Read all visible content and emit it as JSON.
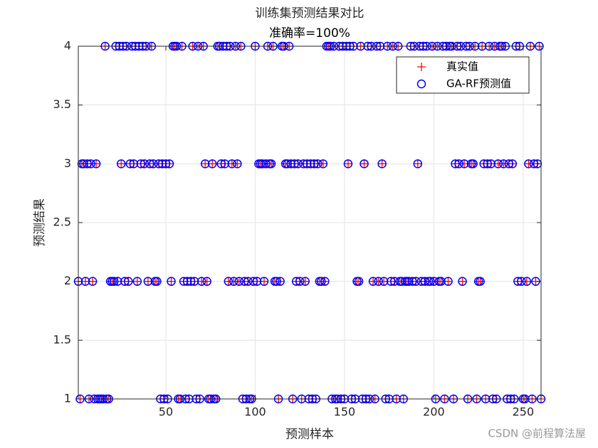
{
  "chart_data": {
    "type": "scatter",
    "title": "训练集预测结果对比",
    "subtitle": "准确率=100%",
    "x_label": "预测样本",
    "y_label": "预测结果",
    "watermark": "CSDN @前程算法屋",
    "xlim": [
      1,
      260
    ],
    "xticks": [
      50,
      100,
      150,
      200,
      250
    ],
    "ylim": [
      1,
      4
    ],
    "yticks": [
      1,
      1.5,
      2,
      2.5,
      3,
      3.5,
      4
    ],
    "grid": true,
    "legend": "upper right",
    "x": [
      1,
      2,
      3,
      4,
      5,
      6,
      7,
      8,
      9,
      10,
      11,
      12,
      13,
      14,
      15,
      16,
      17,
      18,
      19,
      20,
      21,
      22,
      23,
      24,
      25,
      26,
      27,
      28,
      29,
      30,
      31,
      32,
      33,
      34,
      35,
      36,
      37,
      38,
      39,
      40,
      41,
      42,
      43,
      44,
      45,
      46,
      47,
      48,
      49,
      50,
      51,
      52,
      53,
      54,
      55,
      56,
      57,
      58,
      59,
      60,
      61,
      62,
      63,
      64,
      65,
      66,
      67,
      68,
      69,
      70,
      71,
      72,
      73,
      74,
      75,
      76,
      77,
      78,
      79,
      80,
      81,
      82,
      83,
      84,
      85,
      86,
      87,
      88,
      89,
      90,
      91,
      92,
      93,
      94,
      95,
      96,
      97,
      98,
      99,
      100,
      101,
      102,
      103,
      104,
      105,
      106,
      107,
      108,
      109,
      110,
      111,
      112,
      113,
      114,
      115,
      116,
      117,
      118,
      119,
      120,
      121,
      122,
      123,
      124,
      125,
      126,
      127,
      128,
      129,
      130,
      131,
      132,
      133,
      134,
      135,
      136,
      137,
      138,
      139,
      140,
      141,
      142,
      143,
      144,
      145,
      146,
      147,
      148,
      149,
      150,
      151,
      152,
      153,
      154,
      155,
      156,
      157,
      158,
      159,
      160,
      161,
      162,
      163,
      164,
      165,
      166,
      167,
      168,
      169,
      170,
      171,
      172,
      173,
      174,
      175,
      176,
      177,
      178,
      179,
      180,
      181,
      182,
      183,
      184,
      185,
      186,
      187,
      188,
      189,
      190,
      191,
      192,
      193,
      194,
      195,
      196,
      197,
      198,
      199,
      200,
      201,
      202,
      203,
      204,
      205,
      206,
      207,
      208,
      209,
      210,
      211,
      212,
      213,
      214,
      215,
      216,
      217,
      218,
      219,
      220,
      221,
      222,
      223,
      224,
      225,
      226,
      227,
      228,
      229,
      230,
      231,
      232,
      233,
      234,
      235,
      236,
      237,
      238,
      239,
      240,
      241,
      242,
      243,
      244,
      245,
      246,
      247,
      248,
      249,
      250,
      251,
      252,
      253,
      254,
      255,
      256,
      257,
      258,
      259,
      260
    ],
    "series": [
      {
        "name": "真实值",
        "color": "#ff0000",
        "marker": "+",
        "values": [
          2,
          1,
          3,
          3,
          2,
          3,
          1,
          3,
          2,
          1,
          3,
          1,
          1,
          1,
          1,
          4,
          1,
          1,
          2,
          2,
          2,
          4,
          2,
          4,
          3,
          4,
          2,
          4,
          2,
          3,
          4,
          3,
          4,
          2,
          4,
          3,
          4,
          3,
          4,
          2,
          3,
          4,
          3,
          2,
          2,
          3,
          1,
          3,
          1,
          3,
          1,
          3,
          2,
          4,
          4,
          4,
          1,
          1,
          4,
          2,
          1,
          2,
          1,
          2,
          4,
          2,
          1,
          4,
          1,
          2,
          4,
          3,
          2,
          1,
          1,
          3,
          1,
          1,
          4,
          4,
          3,
          4,
          3,
          4,
          2,
          4,
          3,
          2,
          4,
          3,
          2,
          4,
          1,
          2,
          1,
          2,
          1,
          1,
          2,
          4,
          2,
          3,
          3,
          3,
          2,
          3,
          4,
          3,
          3,
          4,
          2,
          2,
          1,
          2,
          4,
          4,
          3,
          3,
          4,
          3,
          1,
          3,
          2,
          3,
          2,
          1,
          3,
          2,
          3,
          1,
          3,
          1,
          3,
          1,
          3,
          2,
          2,
          3,
          2,
          4,
          4,
          4,
          1,
          4,
          1,
          1,
          4,
          1,
          4,
          1,
          4,
          3,
          4,
          1,
          4,
          1,
          2,
          2,
          4,
          1,
          3,
          1,
          4,
          1,
          4,
          2,
          1,
          4,
          2,
          4,
          3,
          2,
          1,
          4,
          1,
          2,
          4,
          2,
          1,
          4,
          2,
          2,
          1,
          2,
          2,
          2,
          4,
          2,
          4,
          2,
          3,
          4,
          2,
          4,
          2,
          4,
          2,
          2,
          4,
          2,
          1,
          4,
          2,
          2,
          4,
          1,
          4,
          2,
          4,
          4,
          1,
          3,
          4,
          3,
          4,
          2,
          3,
          4,
          1,
          4,
          3,
          3,
          4,
          1,
          2,
          2,
          4,
          3,
          1,
          3,
          4,
          3,
          1,
          4,
          1,
          3,
          4,
          4,
          3,
          4,
          1,
          3,
          1,
          3,
          1,
          4,
          2,
          4,
          2,
          1,
          1,
          2,
          3,
          4,
          1,
          3,
          2,
          3,
          4,
          1
        ]
      },
      {
        "name": "GA-RF预测值",
        "color": "#0000ff",
        "marker": "o",
        "values": [
          2,
          1,
          3,
          3,
          2,
          3,
          1,
          3,
          2,
          1,
          3,
          1,
          1,
          1,
          1,
          4,
          1,
          1,
          2,
          2,
          2,
          4,
          2,
          4,
          3,
          4,
          2,
          4,
          2,
          3,
          4,
          3,
          4,
          2,
          4,
          3,
          4,
          3,
          4,
          2,
          3,
          4,
          3,
          2,
          2,
          3,
          1,
          3,
          1,
          3,
          1,
          3,
          2,
          4,
          4,
          4,
          1,
          1,
          4,
          2,
          1,
          2,
          1,
          2,
          4,
          2,
          1,
          4,
          1,
          2,
          4,
          3,
          2,
          1,
          1,
          3,
          1,
          1,
          4,
          4,
          3,
          4,
          3,
          4,
          2,
          4,
          3,
          2,
          4,
          3,
          2,
          4,
          1,
          2,
          1,
          2,
          1,
          1,
          2,
          4,
          2,
          3,
          3,
          3,
          2,
          3,
          4,
          3,
          3,
          4,
          2,
          2,
          1,
          2,
          4,
          4,
          3,
          3,
          4,
          3,
          1,
          3,
          2,
          3,
          2,
          1,
          3,
          2,
          3,
          1,
          3,
          1,
          3,
          1,
          3,
          2,
          2,
          3,
          2,
          4,
          4,
          4,
          1,
          4,
          1,
          1,
          4,
          1,
          4,
          1,
          4,
          3,
          4,
          1,
          4,
          1,
          2,
          2,
          4,
          1,
          3,
          1,
          4,
          1,
          4,
          2,
          1,
          4,
          2,
          4,
          3,
          2,
          1,
          4,
          1,
          2,
          4,
          2,
          1,
          4,
          2,
          2,
          1,
          2,
          2,
          2,
          4,
          2,
          4,
          2,
          3,
          4,
          2,
          4,
          2,
          4,
          2,
          2,
          4,
          2,
          1,
          4,
          2,
          2,
          4,
          1,
          4,
          2,
          4,
          4,
          1,
          3,
          4,
          3,
          4,
          2,
          3,
          4,
          1,
          4,
          3,
          3,
          4,
          1,
          2,
          2,
          4,
          3,
          1,
          3,
          4,
          3,
          1,
          4,
          1,
          3,
          4,
          4,
          3,
          4,
          1,
          3,
          1,
          3,
          1,
          4,
          2,
          4,
          2,
          1,
          1,
          2,
          3,
          4,
          1,
          3,
          2,
          3,
          4,
          1
        ]
      }
    ]
  }
}
